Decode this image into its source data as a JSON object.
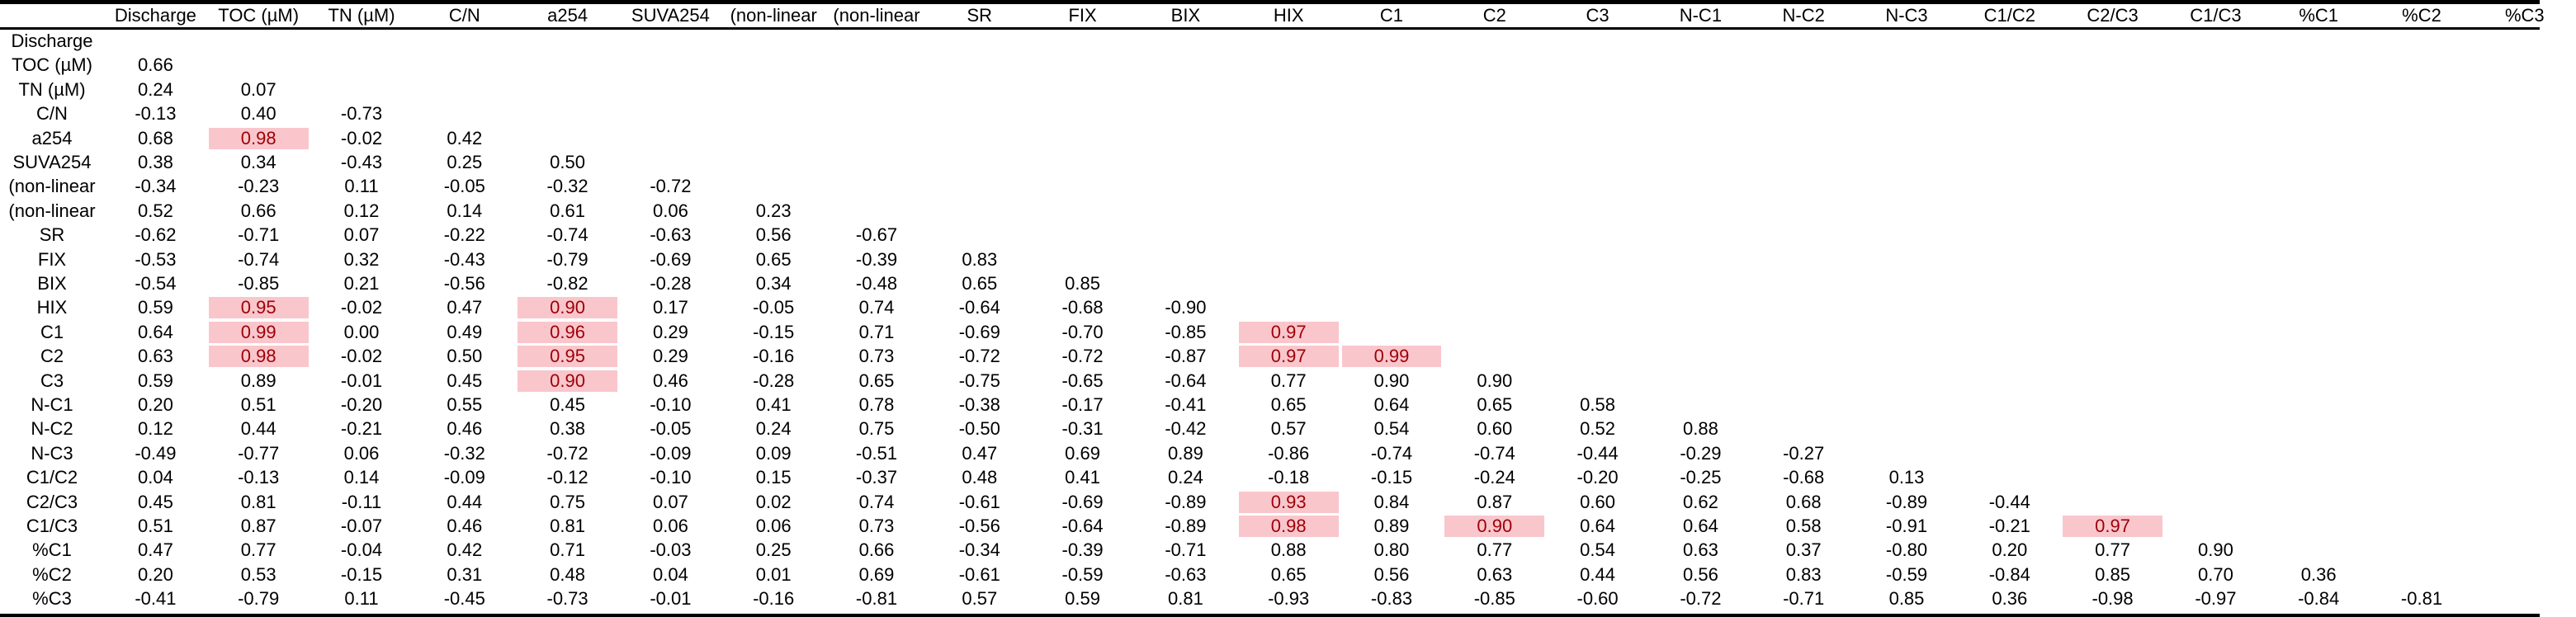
{
  "table": {
    "columns": [
      "Discharge",
      "TOC (µM)",
      "TN (µM)",
      "C/N",
      "a254",
      "SUVA254",
      "(non-linear",
      "(non-linear",
      "SR",
      "FIX",
      "BIX",
      "HIX",
      "C1",
      "C2",
      "C3",
      "N-C1",
      "N-C2",
      "N-C3",
      "C1/C2",
      "C2/C3",
      "C1/C3",
      "%C1",
      "%C2",
      "%C3"
    ],
    "rows": [
      {
        "label": "Discharge",
        "values": []
      },
      {
        "label": "TOC (µM)",
        "values": [
          "0.66"
        ]
      },
      {
        "label": "TN (µM)",
        "values": [
          "0.24",
          "0.07"
        ]
      },
      {
        "label": "C/N",
        "values": [
          "-0.13",
          "0.40",
          "-0.73"
        ]
      },
      {
        "label": "a254",
        "values": [
          "0.68",
          "0.98",
          "-0.02",
          "0.42"
        ]
      },
      {
        "label": "SUVA254",
        "values": [
          "0.38",
          "0.34",
          "-0.43",
          "0.25",
          "0.50"
        ]
      },
      {
        "label": "(non-linear",
        "values": [
          "-0.34",
          "-0.23",
          "0.11",
          "-0.05",
          "-0.32",
          "-0.72"
        ]
      },
      {
        "label": "(non-linear",
        "values": [
          "0.52",
          "0.66",
          "0.12",
          "0.14",
          "0.61",
          "0.06",
          "0.23"
        ]
      },
      {
        "label": "SR",
        "values": [
          "-0.62",
          "-0.71",
          "0.07",
          "-0.22",
          "-0.74",
          "-0.63",
          "0.56",
          "-0.67"
        ]
      },
      {
        "label": "FIX",
        "values": [
          "-0.53",
          "-0.74",
          "0.32",
          "-0.43",
          "-0.79",
          "-0.69",
          "0.65",
          "-0.39",
          "0.83"
        ]
      },
      {
        "label": "BIX",
        "values": [
          "-0.54",
          "-0.85",
          "0.21",
          "-0.56",
          "-0.82",
          "-0.28",
          "0.34",
          "-0.48",
          "0.65",
          "0.85"
        ]
      },
      {
        "label": "HIX",
        "values": [
          "0.59",
          "0.95",
          "-0.02",
          "0.47",
          "0.90",
          "0.17",
          "-0.05",
          "0.74",
          "-0.64",
          "-0.68",
          "-0.90"
        ]
      },
      {
        "label": "C1",
        "values": [
          "0.64",
          "0.99",
          "0.00",
          "0.49",
          "0.96",
          "0.29",
          "-0.15",
          "0.71",
          "-0.69",
          "-0.70",
          "-0.85",
          "0.97"
        ]
      },
      {
        "label": "C2",
        "values": [
          "0.63",
          "0.98",
          "-0.02",
          "0.50",
          "0.95",
          "0.29",
          "-0.16",
          "0.73",
          "-0.72",
          "-0.72",
          "-0.87",
          "0.97",
          "0.99"
        ]
      },
      {
        "label": "C3",
        "values": [
          "0.59",
          "0.89",
          "-0.01",
          "0.45",
          "0.90",
          "0.46",
          "-0.28",
          "0.65",
          "-0.75",
          "-0.65",
          "-0.64",
          "0.77",
          "0.90",
          "0.90"
        ]
      },
      {
        "label": "N-C1",
        "values": [
          "0.20",
          "0.51",
          "-0.20",
          "0.55",
          "0.45",
          "-0.10",
          "0.41",
          "0.78",
          "-0.38",
          "-0.17",
          "-0.41",
          "0.65",
          "0.64",
          "0.65",
          "0.58"
        ]
      },
      {
        "label": "N-C2",
        "values": [
          "0.12",
          "0.44",
          "-0.21",
          "0.46",
          "0.38",
          "-0.05",
          "0.24",
          "0.75",
          "-0.50",
          "-0.31",
          "-0.42",
          "0.57",
          "0.54",
          "0.60",
          "0.52",
          "0.88"
        ]
      },
      {
        "label": "N-C3",
        "values": [
          "-0.49",
          "-0.77",
          "0.06",
          "-0.32",
          "-0.72",
          "-0.09",
          "0.09",
          "-0.51",
          "0.47",
          "0.69",
          "0.89",
          "-0.86",
          "-0.74",
          "-0.74",
          "-0.44",
          "-0.29",
          "-0.27"
        ]
      },
      {
        "label": "C1/C2",
        "values": [
          "0.04",
          "-0.13",
          "0.14",
          "-0.09",
          "-0.12",
          "-0.10",
          "0.15",
          "-0.37",
          "0.48",
          "0.41",
          "0.24",
          "-0.18",
          "-0.15",
          "-0.24",
          "-0.20",
          "-0.25",
          "-0.68",
          "0.13"
        ]
      },
      {
        "label": "C2/C3",
        "values": [
          "0.45",
          "0.81",
          "-0.11",
          "0.44",
          "0.75",
          "0.07",
          "0.02",
          "0.74",
          "-0.61",
          "-0.69",
          "-0.89",
          "0.93",
          "0.84",
          "0.87",
          "0.60",
          "0.62",
          "0.68",
          "-0.89",
          "-0.44"
        ]
      },
      {
        "label": "C1/C3",
        "values": [
          "0.51",
          "0.87",
          "-0.07",
          "0.46",
          "0.81",
          "0.06",
          "0.06",
          "0.73",
          "-0.56",
          "-0.64",
          "-0.89",
          "0.98",
          "0.89",
          "0.90",
          "0.64",
          "0.64",
          "0.58",
          "-0.91",
          "-0.21",
          "0.97"
        ]
      },
      {
        "label": "%C1",
        "values": [
          "0.47",
          "0.77",
          "-0.04",
          "0.42",
          "0.71",
          "-0.03",
          "0.25",
          "0.66",
          "-0.34",
          "-0.39",
          "-0.71",
          "0.88",
          "0.80",
          "0.77",
          "0.54",
          "0.63",
          "0.37",
          "-0.80",
          "0.20",
          "0.77",
          "0.90"
        ]
      },
      {
        "label": "%C2",
        "values": [
          "0.20",
          "0.53",
          "-0.15",
          "0.31",
          "0.48",
          "0.04",
          "0.01",
          "0.69",
          "-0.61",
          "-0.59",
          "-0.63",
          "0.65",
          "0.56",
          "0.63",
          "0.44",
          "0.56",
          "0.83",
          "-0.59",
          "-0.84",
          "0.85",
          "0.70",
          "0.36"
        ]
      },
      {
        "label": "%C3",
        "values": [
          "-0.41",
          "-0.79",
          "0.11",
          "-0.45",
          "-0.73",
          "-0.01",
          "-0.16",
          "-0.81",
          "0.57",
          "0.59",
          "0.81",
          "-0.93",
          "-0.83",
          "-0.85",
          "-0.60",
          "-0.72",
          "-0.71",
          "0.85",
          "0.36",
          "-0.98",
          "-0.97",
          "-0.84",
          "-0.81"
        ]
      }
    ],
    "highlighted": [
      [
        4,
        1
      ],
      [
        11,
        1
      ],
      [
        12,
        1
      ],
      [
        13,
        1
      ],
      [
        11,
        4
      ],
      [
        12,
        4
      ],
      [
        13,
        4
      ],
      [
        14,
        4
      ],
      [
        12,
        11
      ],
      [
        13,
        11
      ],
      [
        13,
        12
      ],
      [
        19,
        11
      ],
      [
        20,
        11
      ],
      [
        20,
        13
      ],
      [
        20,
        19
      ]
    ],
    "highlight_color": "#f9c6cc",
    "highlight_text_color": "#9c0006"
  }
}
